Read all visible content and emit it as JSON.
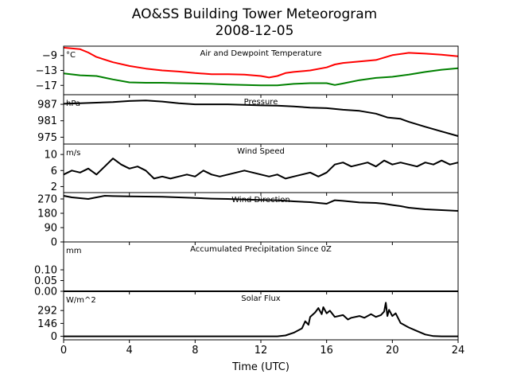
{
  "figure": {
    "title_line1": "AO&SS Building Tower Meteorogram",
    "title_line2": "2008-12-05",
    "xlabel": "Time (UTC)"
  },
  "colors": {
    "air": "#ff0000",
    "dew": "#008000",
    "line": "#000000"
  },
  "chart_data": [
    {
      "type": "line",
      "title": "Air and Dewpoint Temperature",
      "unit": "°C",
      "xlim": [
        0,
        24
      ],
      "ylim": [
        -19.5,
        -6.5
      ],
      "yticks": [
        -9,
        -13,
        -17
      ],
      "ytick_labels": [
        "−9",
        "−13",
        "−17"
      ],
      "series": [
        {
          "name": "",
          "color": "#ff0000",
          "x": [
            0,
            1,
            1.5,
            2,
            3,
            4,
            5,
            6,
            7,
            8,
            9,
            10,
            11,
            12,
            12.5,
            13,
            13.5,
            14,
            15,
            16,
            16.5,
            17,
            18,
            19,
            20,
            21,
            22,
            23,
            24
          ],
          "y": [
            -6.9,
            -7.3,
            -8.2,
            -9.4,
            -10.8,
            -11.8,
            -12.5,
            -13.0,
            -13.3,
            -13.7,
            -14.0,
            -14.0,
            -14.1,
            -14.5,
            -14.9,
            -14.5,
            -13.7,
            -13.4,
            -13.0,
            -12.2,
            -11.4,
            -11.0,
            -10.6,
            -10.2,
            -8.9,
            -8.3,
            -8.5,
            -8.8,
            -9.2
          ]
        },
        {
          "name": "",
          "color": "#008000",
          "x": [
            0,
            1,
            2,
            3,
            4,
            5,
            6,
            7,
            8,
            9,
            10,
            11,
            12,
            13,
            14,
            15,
            16,
            16.5,
            17,
            18,
            19,
            20,
            21,
            22,
            23,
            24
          ],
          "y": [
            -13.8,
            -14.3,
            -14.5,
            -15.4,
            -16.2,
            -16.3,
            -16.3,
            -16.4,
            -16.5,
            -16.6,
            -16.8,
            -16.9,
            -17.0,
            -17.0,
            -16.6,
            -16.4,
            -16.4,
            -16.9,
            -16.5,
            -15.6,
            -15.0,
            -14.7,
            -14.1,
            -13.4,
            -12.8,
            -12.4
          ]
        }
      ]
    },
    {
      "type": "line",
      "title": "Pressure",
      "unit": "hPa",
      "xlim": [
        0,
        24
      ],
      "ylim": [
        972.5,
        990.5
      ],
      "yticks": [
        987,
        981,
        975
      ],
      "ytick_labels": [
        "987",
        "981",
        "975"
      ],
      "series": [
        {
          "name": "",
          "color": "#000000",
          "x": [
            0,
            1,
            2,
            3,
            4,
            5,
            6,
            7,
            8,
            9,
            10,
            11,
            12,
            13,
            14,
            15,
            16,
            17,
            18,
            19,
            19.7,
            20.5,
            21,
            22,
            23,
            24
          ],
          "y": [
            987.2,
            987.4,
            987.6,
            987.8,
            988.2,
            988.4,
            988.0,
            987.4,
            987.0,
            987.0,
            987.0,
            986.8,
            986.6,
            986.5,
            986.2,
            985.8,
            985.6,
            985.0,
            984.6,
            983.6,
            982.2,
            981.7,
            980.6,
            978.8,
            977.1,
            975.4
          ]
        }
      ]
    },
    {
      "type": "line",
      "title": "Wind Speed",
      "unit": "m/s",
      "xlim": [
        0,
        24
      ],
      "ylim": [
        0.5,
        12.6
      ],
      "yticks": [
        10,
        6,
        2
      ],
      "ytick_labels": [
        "10",
        "6",
        "2"
      ],
      "series": [
        {
          "name": "",
          "color": "#000000",
          "x": [
            0,
            0.5,
            1,
            1.5,
            2,
            2.5,
            3,
            3.5,
            4,
            4.5,
            5,
            5.5,
            6,
            6.5,
            7,
            7.5,
            8,
            8.5,
            9,
            9.5,
            10,
            10.5,
            11,
            11.5,
            12,
            12.5,
            13,
            13.5,
            14,
            14.5,
            15,
            15.5,
            16,
            16.5,
            17,
            17.5,
            18,
            18.5,
            19,
            19.5,
            20,
            20.5,
            21,
            21.5,
            22,
            22.5,
            23,
            23.5,
            24
          ],
          "y": [
            5,
            6,
            5.5,
            6.5,
            5,
            7,
            9,
            7.5,
            6.5,
            7,
            6,
            4,
            4.5,
            4,
            4.5,
            5,
            4.5,
            6,
            5,
            4.5,
            5,
            5.5,
            6,
            5.5,
            5,
            4.5,
            5,
            4,
            4.5,
            5,
            5.5,
            4.5,
            5.5,
            7.5,
            8,
            7,
            7.5,
            8,
            7,
            8.5,
            7.5,
            8,
            7.5,
            7,
            8,
            7.5,
            8.5,
            7.5,
            8
          ]
        }
      ]
    },
    {
      "type": "line",
      "title": "Wind Direction",
      "unit": "",
      "xlim": [
        0,
        24
      ],
      "ylim": [
        0,
        310
      ],
      "yticks": [
        270,
        180,
        90,
        0
      ],
      "ytick_labels": [
        "270",
        "180",
        "90",
        "0"
      ],
      "series": [
        {
          "name": "",
          "color": "#000000",
          "x": [
            0,
            0.5,
            1,
            1.5,
            2,
            2.5,
            3,
            4,
            5,
            6,
            7,
            8,
            9,
            10,
            11,
            12,
            13,
            14,
            15,
            16,
            16.5,
            17,
            18,
            19,
            19.5,
            20,
            20.5,
            21,
            22,
            23,
            24
          ],
          "y": [
            290,
            280,
            275,
            270,
            280,
            290,
            288,
            286,
            285,
            284,
            280,
            276,
            272,
            270,
            266,
            264,
            262,
            255,
            250,
            240,
            262,
            258,
            248,
            245,
            240,
            232,
            225,
            215,
            205,
            200,
            195
          ]
        }
      ]
    },
    {
      "type": "line",
      "title": "Accumulated Precipitation Since 0Z",
      "unit": "mm",
      "xlim": [
        0,
        24
      ],
      "ylim": [
        0,
        0.23
      ],
      "yticks": [
        0.1,
        0.05,
        0.0
      ],
      "ytick_labels": [
        "0.10",
        "0.05",
        "0.00"
      ],
      "series": [
        {
          "name": "",
          "color": "#000000",
          "x": [
            0,
            24
          ],
          "y": [
            0,
            0
          ]
        }
      ]
    },
    {
      "type": "line",
      "title": "Solar Flux",
      "unit": "W/m^2",
      "xlim": [
        0,
        24
      ],
      "ylim": [
        -40,
        510
      ],
      "yticks": [
        292,
        146,
        0
      ],
      "ytick_labels": [
        "292",
        "146",
        "0"
      ],
      "series": [
        {
          "name": "",
          "color": "#000000",
          "x": [
            0,
            13,
            13.5,
            14,
            14.5,
            14.7,
            14.9,
            15,
            15.3,
            15.5,
            15.7,
            15.8,
            16,
            16.2,
            16.5,
            17,
            17.3,
            17.5,
            18,
            18.3,
            18.7,
            19,
            19.3,
            19.5,
            19.6,
            19.7,
            19.8,
            20,
            20.2,
            20.5,
            21,
            21.5,
            22,
            22.5,
            23,
            24
          ],
          "y": [
            0,
            0,
            10,
            40,
            90,
            170,
            130,
            220,
            270,
            320,
            250,
            330,
            260,
            290,
            220,
            240,
            190,
            210,
            230,
            210,
            250,
            220,
            240,
            280,
            380,
            230,
            300,
            230,
            260,
            150,
            100,
            60,
            20,
            2,
            0,
            0
          ]
        }
      ]
    }
  ],
  "xticks": [
    0,
    4,
    8,
    12,
    16,
    20,
    24
  ],
  "xtick_labels": [
    "0",
    "4",
    "8",
    "12",
    "16",
    "20",
    "24"
  ]
}
